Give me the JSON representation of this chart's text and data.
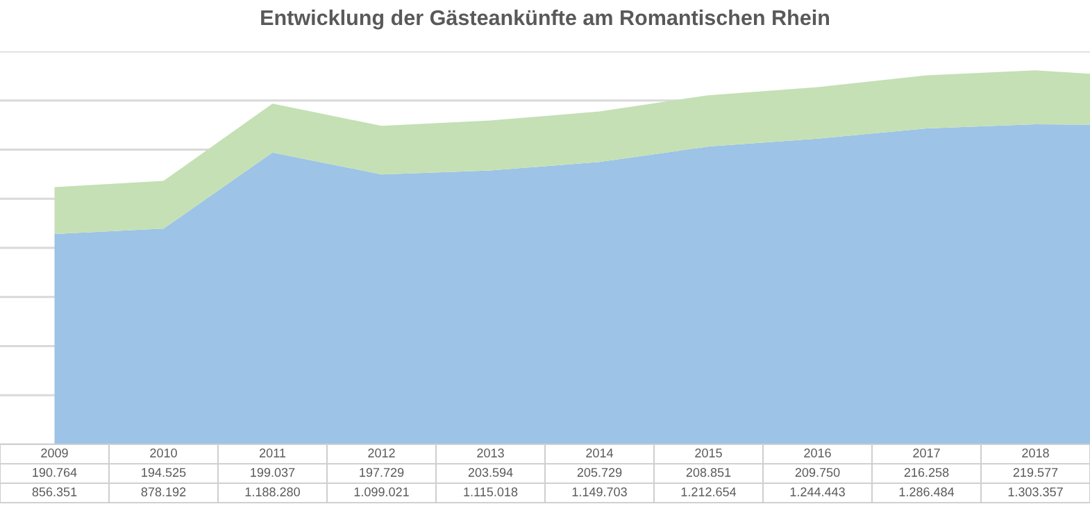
{
  "chart_data": {
    "type": "area",
    "title": "Entwicklung der Gästeankünfte am Romantischen Rhein",
    "categories": [
      "2009",
      "2010",
      "2011",
      "2012",
      "2013",
      "2014",
      "2015",
      "2016",
      "2017",
      "2018",
      null
    ],
    "stacked": true,
    "series": [
      {
        "color": "#9dc3e6",
        "values": [
          856351,
          878192,
          1188280,
          1099021,
          1115018,
          1149703,
          1212654,
          1244443,
          1286484,
          1303357,
          1300000
        ],
        "value_labels": [
          "856.351",
          "878.192",
          "1.188.280",
          "1.099.021",
          "1.115.018",
          "1.149.703",
          "1.212.654",
          "1.244.443",
          "1.286.484",
          "1.303.357",
          null
        ]
      },
      {
        "color": "#c5e0b4",
        "values": [
          190764,
          194525,
          199037,
          197729,
          203594,
          205729,
          208851,
          209750,
          216258,
          219577,
          195000
        ],
        "value_labels": [
          "190.764",
          "194.525",
          "199.037",
          "197.729",
          "203.594",
          "205.729",
          "208.851",
          "209.750",
          "216.258",
          "219.577",
          null
        ]
      }
    ],
    "ylim": [
      0,
      1600000
    ],
    "yticks": [
      {
        "value": 0,
        "label": null
      },
      {
        "value": 200000,
        "label": null
      },
      {
        "value": 400000,
        "label": null
      },
      {
        "value": 600000,
        "label": null
      },
      {
        "value": 800000,
        "label": null
      },
      {
        "value": 1000000,
        "label": null
      },
      {
        "value": 1200000,
        "label": null
      },
      {
        "value": 1400000,
        "label": null
      },
      {
        "value": 1600000,
        "label": null
      }
    ],
    "grid": "y"
  }
}
